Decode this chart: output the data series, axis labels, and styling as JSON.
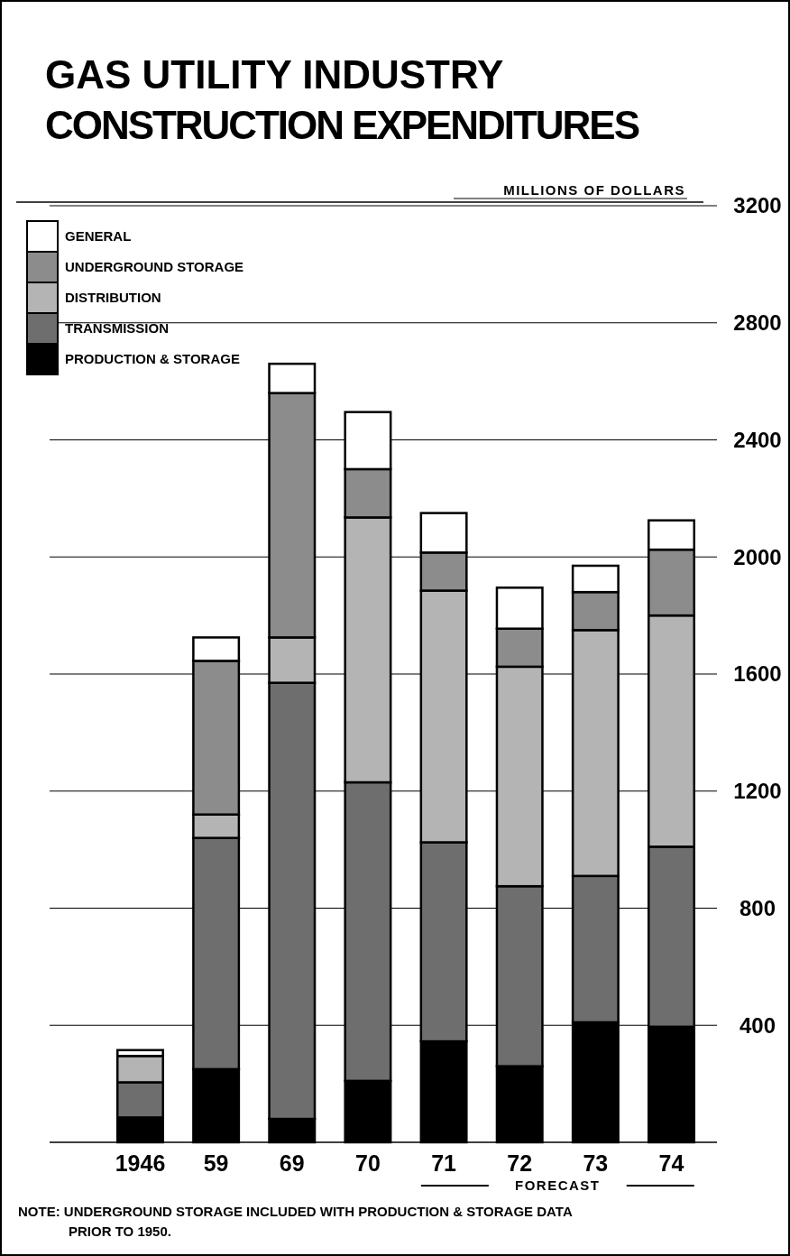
{
  "chart_data": {
    "type": "bar",
    "title": "GAS UTILITY INDUSTRY CONSTRUCTION EXPENDITURES",
    "ylabel": "MILLIONS OF DOLLARS",
    "categories": [
      "1946",
      "59",
      "69",
      "70",
      "71",
      "72",
      "73",
      "74"
    ],
    "stacked": true,
    "legend": "top left",
    "grid": "y",
    "ylim": [
      0,
      3200
    ],
    "yticks": [
      400,
      800,
      1200,
      1600,
      2000,
      2400,
      2800,
      3200
    ],
    "series": [
      {
        "name": "PRODUCTION & STORAGE",
        "color": "#000000",
        "values": [
          85,
          250,
          80,
          210,
          345,
          260,
          410,
          395
        ]
      },
      {
        "name": "TRANSMISSION",
        "color": "#6e6e6e",
        "values": [
          120,
          790,
          1490,
          1020,
          680,
          615,
          500,
          615
        ]
      },
      {
        "name": "DISTRIBUTION",
        "color": "#b4b4b4",
        "values": [
          90,
          80,
          155,
          905,
          860,
          750,
          840,
          790
        ]
      },
      {
        "name": "UNDERGROUND STORAGE",
        "color": "#8c8c8c",
        "values": [
          0,
          525,
          835,
          165,
          130,
          130,
          130,
          225
        ]
      },
      {
        "name": "GENERAL",
        "color": "#ffffff",
        "values": [
          20,
          80,
          100,
          195,
          135,
          140,
          90,
          100
        ]
      }
    ],
    "annotations": [
      "FORECAST",
      "NOTE: UNDERGROUND STORAGE INCLUDED WITH PRODUCTION & STORAGE DATA PRIOR TO 1950."
    ]
  }
}
